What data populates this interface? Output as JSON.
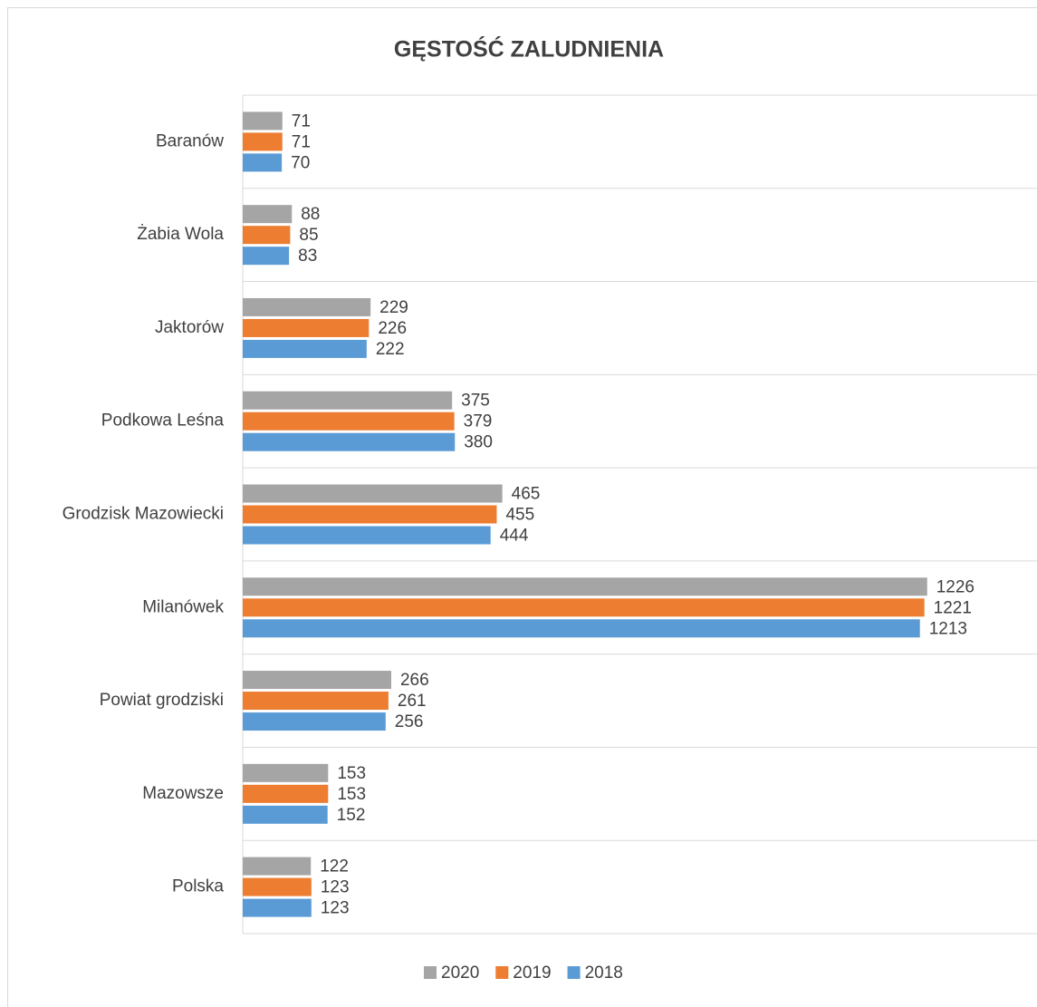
{
  "chart_data": {
    "type": "hbar",
    "title": "GĘSTOŚĆ ZALUDNIENIA",
    "categories": [
      "Baranów",
      "Żabia Wola",
      "Jaktorów",
      "Podkowa Leśna",
      "Grodzisk Mazowiecki",
      "Milanówek",
      "Powiat grodziski",
      "Mazowsze",
      "Polska"
    ],
    "series": [
      {
        "name": "2020",
        "color": "#a5a5a5",
        "values": [
          71,
          88,
          229,
          375,
          465,
          1226,
          266,
          153,
          122
        ]
      },
      {
        "name": "2019",
        "color": "#ed7d31",
        "values": [
          71,
          85,
          226,
          379,
          455,
          1221,
          261,
          153,
          123
        ]
      },
      {
        "name": "2018",
        "color": "#5b9bd5",
        "values": [
          70,
          83,
          222,
          380,
          444,
          1213,
          256,
          152,
          123
        ]
      }
    ],
    "xlim": [
      0,
      1400
    ],
    "legend": "bottom",
    "grid": true
  }
}
